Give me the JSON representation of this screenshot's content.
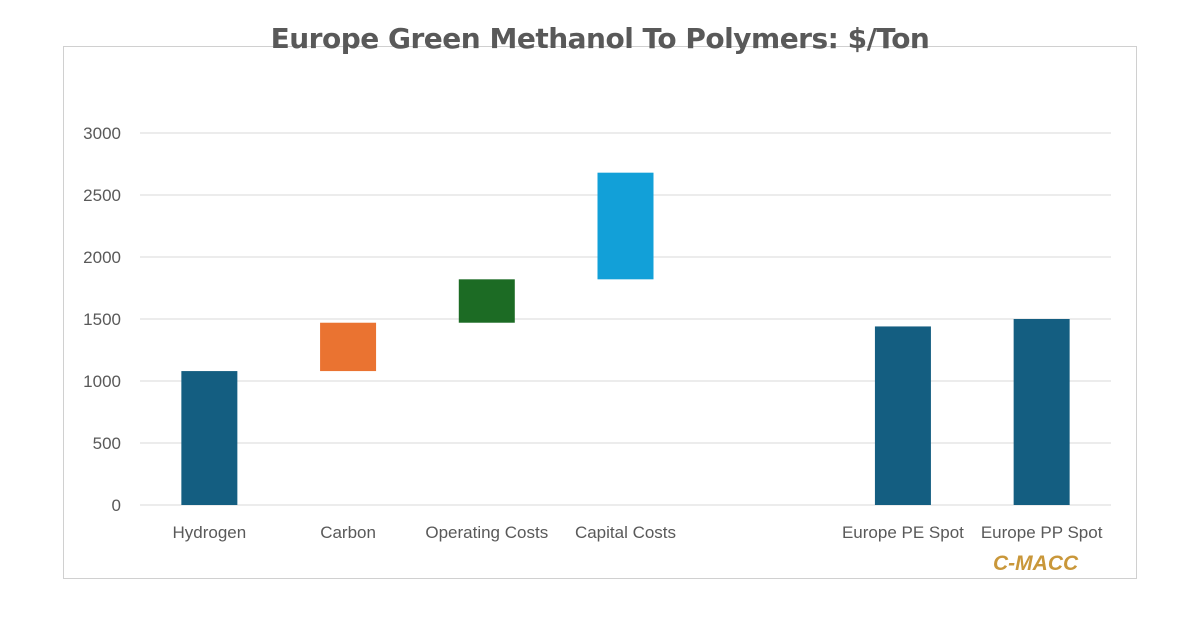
{
  "chart_data": {
    "type": "bar",
    "subtype": "waterfall",
    "title": "Europe Green Methanol To Polymers: $/Ton",
    "xlabel": "",
    "ylabel": "",
    "ylim": [
      0,
      3000
    ],
    "yticks": [
      0,
      500,
      1000,
      1500,
      2000,
      2500,
      3000
    ],
    "grid": true,
    "categories": [
      "Hydrogen",
      "Carbon",
      "Operating Costs",
      "Capital Costs",
      "",
      "Europe PE Spot",
      "Europe PP Spot"
    ],
    "bars": [
      {
        "category": "Hydrogen",
        "base": 0,
        "value": 1080,
        "color": "#145e81"
      },
      {
        "category": "Carbon",
        "base": 1080,
        "value": 390,
        "color": "#ea7331"
      },
      {
        "category": "Operating Costs",
        "base": 1470,
        "value": 350,
        "color": "#1c6b24"
      },
      {
        "category": "Capital Costs",
        "base": 1820,
        "value": 860,
        "color": "#12a0d8"
      },
      {
        "category": "",
        "base": 0,
        "value": 0,
        "color": "#145e81"
      },
      {
        "category": "Europe PE Spot",
        "base": 0,
        "value": 1440,
        "color": "#145e81"
      },
      {
        "category": "Europe PP Spot",
        "base": 0,
        "value": 1500,
        "color": "#145e81"
      }
    ]
  },
  "watermark": "C-MACC"
}
